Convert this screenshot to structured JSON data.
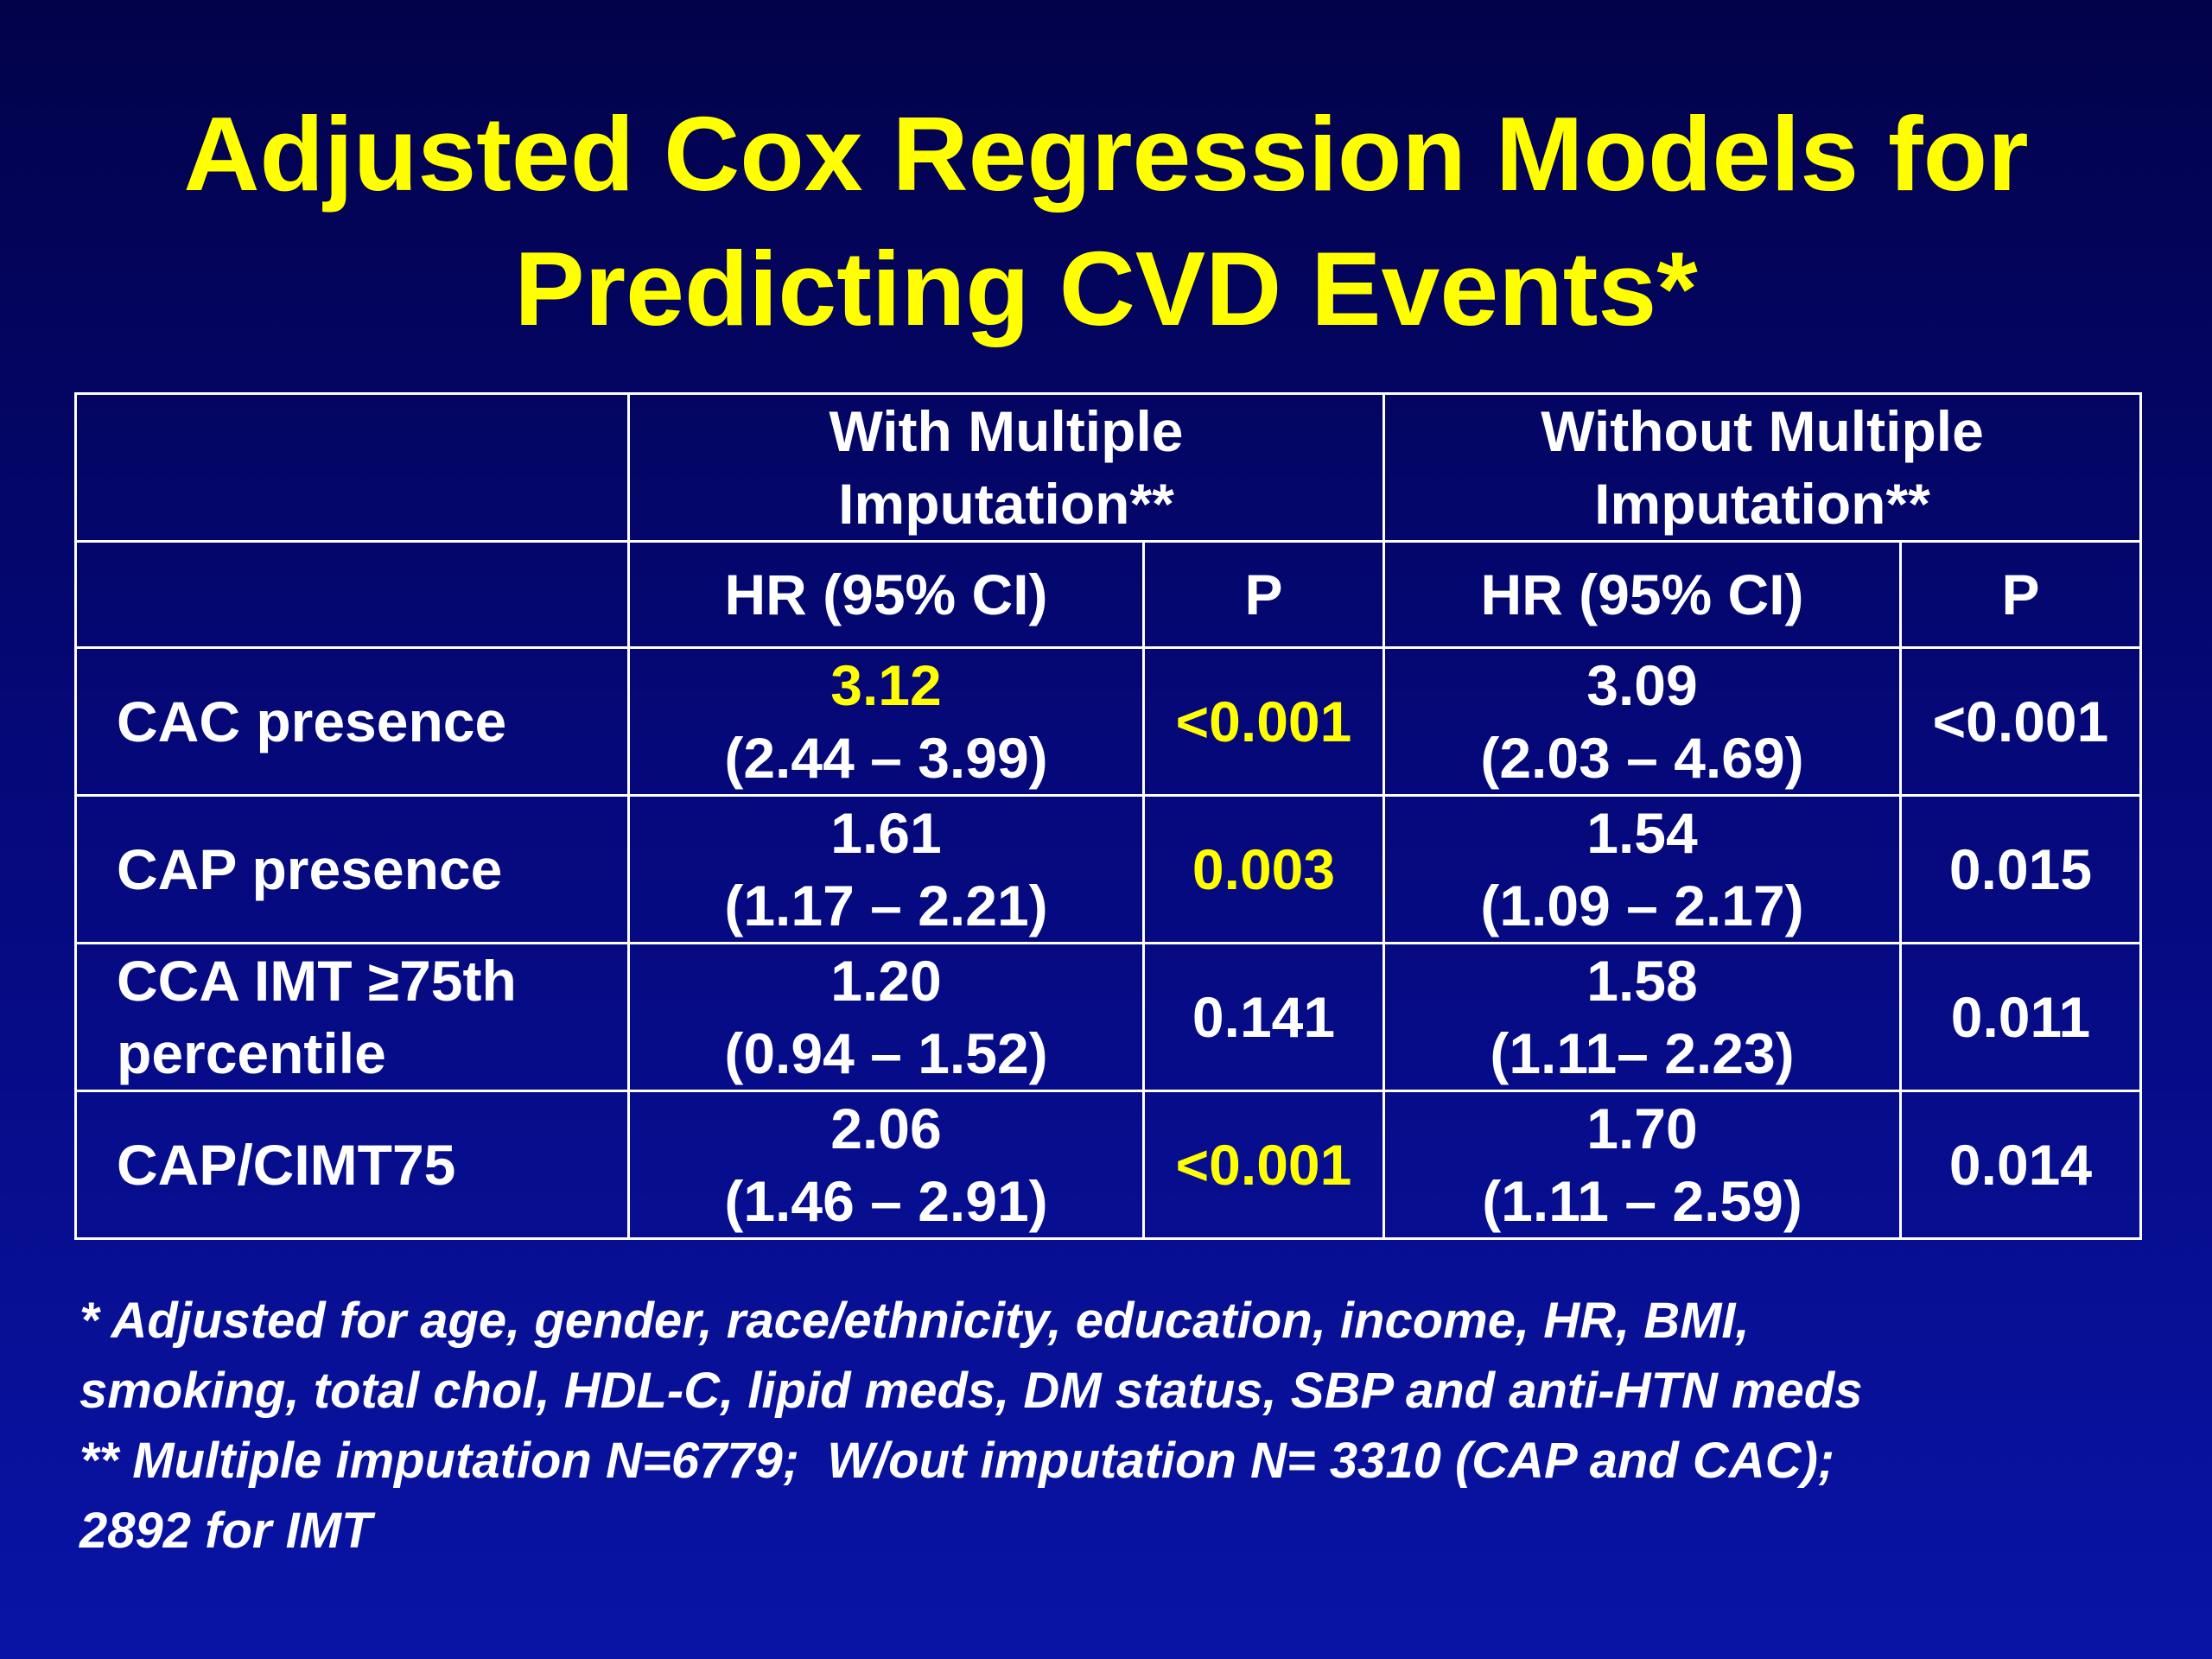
{
  "slide": {
    "title_lines": [
      "Adjusted Cox Regression Models for",
      "Predicting CVD Events*"
    ],
    "table": {
      "group_headers": [
        "With Multiple Imputation**",
        "Without Multiple Imputation**"
      ],
      "group_header_lines": [
        [
          "With Multiple",
          "Imputation**"
        ],
        [
          "Without Multiple",
          "Imputation**"
        ]
      ],
      "sub_headers": [
        "HR (95% CI)",
        "P",
        "HR (95% CI)",
        "P"
      ],
      "rows": [
        {
          "label_lines": [
            "CAC presence"
          ],
          "with_hr": "3.12",
          "with_ci": "(2.44 – 3.99)",
          "with_p": "<0.001",
          "without_hr": "3.09",
          "without_ci": "(2.03 – 4.69)",
          "without_p": "<0.001"
        },
        {
          "label_lines": [
            "CAP presence"
          ],
          "with_hr": "1.61",
          "with_ci": "(1.17 – 2.21)",
          "with_p": "0.003",
          "without_hr": "1.54",
          "without_ci": "(1.09 – 2.17)",
          "without_p": "0.015"
        },
        {
          "label_lines": [
            "CCA IMT ≥75th",
            "percentile"
          ],
          "with_hr": "1.20",
          "with_ci": "(0.94 – 1.52)",
          "with_p": "0.141",
          "without_hr": "1.58",
          "without_ci": "(1.11– 2.23)",
          "without_p": "0.011"
        },
        {
          "label_lines": [
            "CAP/CIMT75"
          ],
          "with_hr": "2.06",
          "with_ci": "(1.46 – 2.91)",
          "with_p": "<0.001",
          "without_hr": "1.70",
          "without_ci": "(1.11 – 2.59)",
          "without_p": "0.014"
        }
      ]
    },
    "footnote_lines": [
      "* Adjusted for age, gender, race/ethnicity, education, income, HR, BMI,",
      "smoking, total chol, HDL-C, lipid meds, DM status, SBP and anti-HTN meds",
      "** Multiple imputation N=6779;  W/out imputation N= 3310 (CAP and CAC);",
      "2892 for IMT"
    ],
    "colors": {
      "title": "#ffff00",
      "highlight": "#ffff00",
      "text": "#ffffff",
      "background_top": "#02024a",
      "background_bottom": "#0914a6"
    }
  }
}
